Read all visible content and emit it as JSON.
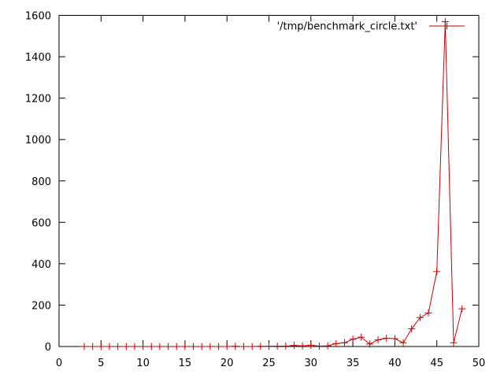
{
  "chart_data": {
    "type": "line",
    "title": "",
    "xlabel": "",
    "ylabel": "",
    "xlim": [
      0,
      50
    ],
    "ylim": [
      0,
      1600
    ],
    "xticks": [
      0,
      5,
      10,
      15,
      20,
      25,
      30,
      35,
      40,
      45,
      50
    ],
    "yticks": [
      0,
      200,
      400,
      600,
      800,
      1000,
      1200,
      1400,
      1600
    ],
    "x_tick_labels": [
      "0",
      "5",
      "10",
      "15",
      "20",
      "25",
      "30",
      "35",
      "40",
      "45",
      "50"
    ],
    "y_tick_labels": [
      "0",
      "200",
      "400",
      "600",
      "800",
      "1000",
      "1200",
      "1400",
      "1600"
    ],
    "grid": false,
    "legend_position": "top-right",
    "series": [
      {
        "name": "'/tmp/benchmark_circle.txt'",
        "color": "#cc0000",
        "marker": "plus",
        "x": [
          3,
          4,
          5,
          6,
          7,
          8,
          9,
          10,
          11,
          12,
          13,
          14,
          15,
          16,
          17,
          18,
          19,
          20,
          21,
          22,
          23,
          24,
          25,
          26,
          27,
          28,
          29,
          30,
          31,
          32,
          33,
          34,
          35,
          36,
          37,
          38,
          39,
          40,
          41,
          42,
          43,
          44,
          45,
          46,
          47,
          48
        ],
        "y": [
          0,
          0,
          0,
          0,
          0,
          0,
          0,
          0,
          0,
          0,
          0,
          0,
          0,
          0,
          0,
          0,
          0,
          0,
          1,
          0,
          0,
          1,
          1,
          2,
          2,
          5,
          3,
          6,
          2,
          3,
          14,
          18,
          35,
          45,
          12,
          32,
          40,
          38,
          18,
          85,
          140,
          162,
          362,
          1570,
          18,
          182
        ]
      }
    ]
  }
}
